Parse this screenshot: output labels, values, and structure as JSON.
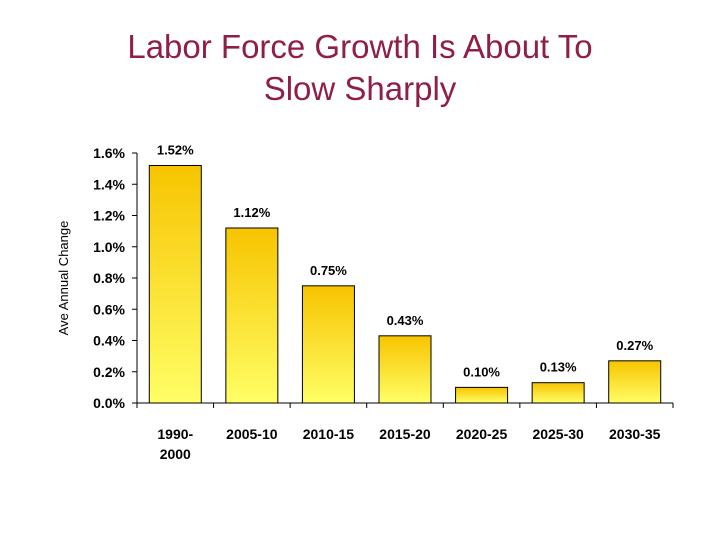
{
  "slide": {
    "title_line1": "Labor Force Growth Is About To",
    "title_line2": "Slow Sharply"
  },
  "colors": {
    "title": "#8f1f4a",
    "bar_top": "#f7c400",
    "bar_bottom": "#ffff66",
    "bar_outline": "#000000"
  },
  "chart_data": {
    "type": "bar",
    "title": "Labor Force Growth Is About To Slow Sharply",
    "xlabel": "",
    "ylabel": "Ave Annual Change",
    "categories": [
      [
        "1990-",
        "2000"
      ],
      [
        "2005-10"
      ],
      [
        "2010-15"
      ],
      [
        "2015-20"
      ],
      [
        "2020-25"
      ],
      [
        "2025-30"
      ],
      [
        "2030-35"
      ]
    ],
    "values": [
      1.52,
      1.12,
      0.75,
      0.43,
      0.1,
      0.13,
      0.27
    ],
    "data_labels": [
      "1.52%",
      "1.12%",
      "0.75%",
      "0.43%",
      "0.10%",
      "0.13%",
      "0.27%"
    ],
    "ylim": [
      0.0,
      1.6
    ],
    "yticks": [
      0.0,
      0.2,
      0.4,
      0.6,
      0.8,
      1.0,
      1.2,
      1.4,
      1.6
    ],
    "ytick_labels": [
      "0.0%",
      "0.2%",
      "0.4%",
      "0.6%",
      "0.8%",
      "1.0%",
      "1.2%",
      "1.4%",
      "1.6%"
    ],
    "grid": false,
    "legend": "none"
  }
}
